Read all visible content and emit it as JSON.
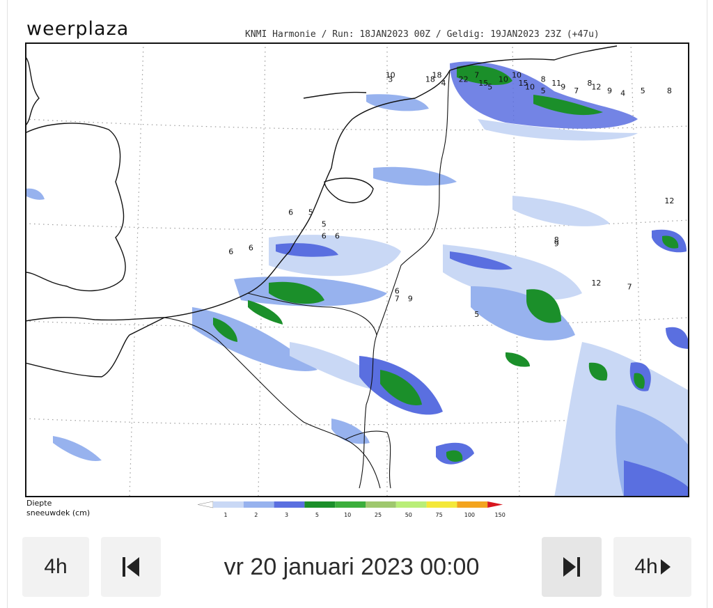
{
  "header": {
    "logo_bold": "weer",
    "logo_light": "plaza",
    "run_info": "KNMI Harmonie / Run: 18JAN2023 00Z / Geldig: 19JAN2023 23Z (+47u)"
  },
  "map": {
    "title": "",
    "depth_values": [
      {
        "lon": 0.55,
        "lat": 54.15,
        "v": "10"
      },
      {
        "lon": 0.62,
        "lat": 54.15,
        "v": "18"
      },
      {
        "lon": 0.68,
        "lat": 54.15,
        "v": "7"
      },
      {
        "lon": 0.74,
        "lat": 54.15,
        "v": "10"
      },
      {
        "lon": 0.55,
        "lat": 54.1,
        "v": "3"
      },
      {
        "lon": 0.61,
        "lat": 54.1,
        "v": "18"
      },
      {
        "lon": 0.66,
        "lat": 54.1,
        "v": "22"
      },
      {
        "lon": 0.72,
        "lat": 54.1,
        "v": "10"
      },
      {
        "lon": 0.78,
        "lat": 54.1,
        "v": "8"
      },
      {
        "lon": 0.63,
        "lat": 54.05,
        "v": "4"
      },
      {
        "lon": 0.69,
        "lat": 54.05,
        "v": "15"
      },
      {
        "lon": 0.75,
        "lat": 54.05,
        "v": "15"
      },
      {
        "lon": 0.8,
        "lat": 54.05,
        "v": "11"
      },
      {
        "lon": 0.85,
        "lat": 54.05,
        "v": "8"
      },
      {
        "lon": 0.7,
        "lat": 54.0,
        "v": "5"
      },
      {
        "lon": 0.76,
        "lat": 54.0,
        "v": "10"
      },
      {
        "lon": 0.81,
        "lat": 54.0,
        "v": "9"
      },
      {
        "lon": 0.86,
        "lat": 54.0,
        "v": "12"
      },
      {
        "lon": 0.78,
        "lat": 53.95,
        "v": "5"
      },
      {
        "lon": 0.83,
        "lat": 53.95,
        "v": "7"
      },
      {
        "lon": 0.88,
        "lat": 53.95,
        "v": "9"
      },
      {
        "lon": 0.9,
        "lat": 53.92,
        "v": "4"
      },
      {
        "lon": 0.93,
        "lat": 53.95,
        "v": "5"
      },
      {
        "lon": 0.97,
        "lat": 53.95,
        "v": "8"
      },
      {
        "lon": 0.4,
        "lat": 52.4,
        "v": "6"
      },
      {
        "lon": 0.43,
        "lat": 52.4,
        "v": "5"
      },
      {
        "lon": 0.45,
        "lat": 52.25,
        "v": "5"
      },
      {
        "lon": 0.45,
        "lat": 52.1,
        "v": "6"
      },
      {
        "lon": 0.47,
        "lat": 52.1,
        "v": "6"
      },
      {
        "lon": 0.34,
        "lat": 51.95,
        "v": "6"
      },
      {
        "lon": 0.31,
        "lat": 51.9,
        "v": "6"
      },
      {
        "lon": 0.56,
        "lat": 51.4,
        "v": "6"
      },
      {
        "lon": 0.56,
        "lat": 51.3,
        "v": "7"
      },
      {
        "lon": 0.58,
        "lat": 51.3,
        "v": "9"
      },
      {
        "lon": 0.8,
        "lat": 52.05,
        "v": "8"
      },
      {
        "lon": 0.8,
        "lat": 52.0,
        "v": "9"
      },
      {
        "lon": 0.86,
        "lat": 51.5,
        "v": "12"
      },
      {
        "lon": 0.91,
        "lat": 51.45,
        "v": "7"
      },
      {
        "lon": 0.97,
        "lat": 52.55,
        "v": "12"
      },
      {
        "lon": 0.68,
        "lat": 51.1,
        "v": "5"
      }
    ]
  },
  "legend": {
    "title_line1": "Diepte",
    "title_line2": "sneeuwdek (cm)",
    "bands": [
      {
        "label": "1",
        "color": "#ffffff"
      },
      {
        "label": "2",
        "color": "#c9d8f5"
      },
      {
        "label": "3",
        "color": "#97b2ee"
      },
      {
        "label": "5",
        "color": "#5a6fe0"
      },
      {
        "label": "10",
        "color": "#1b8f2a"
      },
      {
        "label": "25",
        "color": "#3cae3c"
      },
      {
        "label": "50",
        "color": "#9fc86e"
      },
      {
        "label": "75",
        "color": "#b9ee78"
      },
      {
        "label": "100",
        "color": "#f4e83a"
      },
      {
        "label": "150",
        "color": "#f3a41e"
      },
      {
        "label": "",
        "color": "#d8161e"
      }
    ]
  },
  "controls": {
    "back_4h": "4h",
    "forward_4h": "4h",
    "datetime": "vr 20 januari 2023 00:00"
  }
}
